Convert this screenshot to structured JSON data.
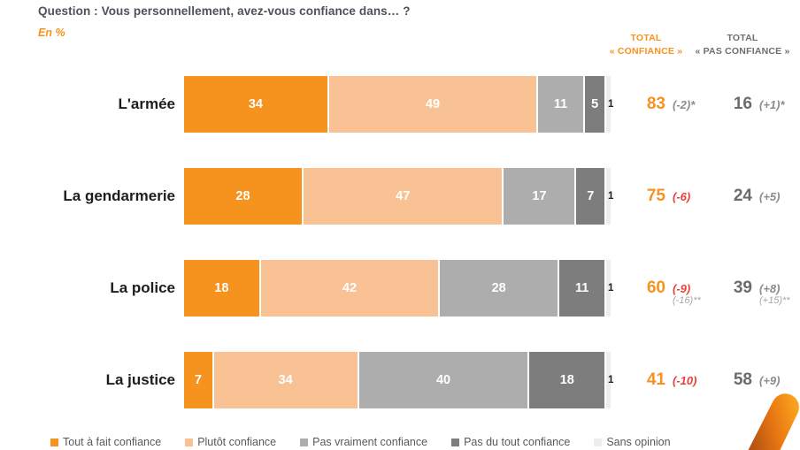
{
  "header": {
    "question": "Question : Vous personnellement, avez-vous confiance dans… ?",
    "unit": "En %"
  },
  "columns": {
    "confiance": {
      "line1": "TOTAL",
      "line2": "« CONFIANCE »"
    },
    "pas_confiance": {
      "line1": "TOTAL",
      "line2": "« PAS CONFIANCE »"
    }
  },
  "colors": {
    "accent_orange": "#f6921e",
    "light_orange": "#f9c294",
    "mid_gray": "#adadad",
    "dark_gray": "#7d7d7d",
    "very_light_gray": "#ededed",
    "negative_red": "#e8403a",
    "annotation_gray": "#8c8c8c",
    "title_gray": "#4d525a"
  },
  "chart_data": {
    "type": "bar",
    "orientation": "horizontal-stacked",
    "unit": "%",
    "xlim": [
      0,
      100
    ],
    "grid": false,
    "legend_position": "bottom",
    "title": "Question : Vous personnellement, avez-vous confiance dans… ?",
    "categories": [
      "L'armée",
      "La gendarmerie",
      "La police",
      "La justice"
    ],
    "series": [
      {
        "name": "Tout à fait confiance",
        "color": "#f6921e",
        "values": [
          34,
          28,
          18,
          7
        ]
      },
      {
        "name": "Plutôt confiance",
        "color": "#f9c294",
        "values": [
          49,
          47,
          42,
          34
        ]
      },
      {
        "name": "Pas vraiment confiance",
        "color": "#adadad",
        "values": [
          11,
          17,
          28,
          40
        ]
      },
      {
        "name": "Pas du tout confiance",
        "color": "#7d7d7d",
        "values": [
          5,
          7,
          11,
          18
        ]
      },
      {
        "name": "Sans opinion",
        "color": "#ededed",
        "values": [
          1,
          1,
          1,
          1
        ],
        "label_outside": true,
        "label_color": "#22222e"
      }
    ],
    "totals": [
      {
        "confiance": {
          "value": "83",
          "change": "(-2)*",
          "change_color": "#8c8c8c"
        },
        "pas_confiance": {
          "value": "16",
          "change": "(+1)*",
          "change_color": "#8c8c8c"
        }
      },
      {
        "confiance": {
          "value": "75",
          "change": "(-6)",
          "change_color": "#e8403a"
        },
        "pas_confiance": {
          "value": "24",
          "change": "(+5)",
          "change_color": "#8c8c8c"
        }
      },
      {
        "confiance": {
          "value": "60",
          "change": "(-9)",
          "change_color": "#e8403a",
          "change2": "(-16)**"
        },
        "pas_confiance": {
          "value": "39",
          "change": "(+8)",
          "change_color": "#8c8c8c",
          "change2": "(+15)**"
        }
      },
      {
        "confiance": {
          "value": "41",
          "change": "(-10)",
          "change_color": "#e8403a"
        },
        "pas_confiance": {
          "value": "58",
          "change": "(+9)",
          "change_color": "#8c8c8c"
        }
      }
    ]
  }
}
